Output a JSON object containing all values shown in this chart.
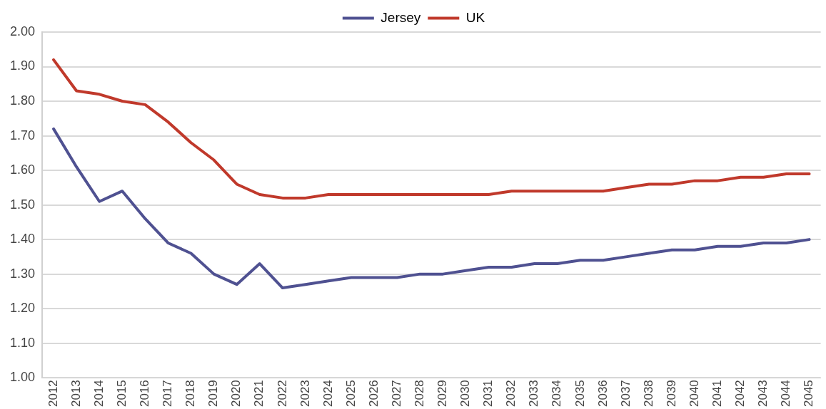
{
  "chart_data": {
    "type": "line",
    "categories": [
      "2012",
      "2013",
      "2014",
      "2015",
      "2016",
      "2017",
      "2018",
      "2019",
      "2020",
      "2021",
      "2022",
      "2023",
      "2024",
      "2025",
      "2026",
      "2027",
      "2028",
      "2029",
      "2030",
      "2031",
      "2032",
      "2033",
      "2034",
      "2035",
      "2036",
      "2037",
      "2038",
      "2039",
      "2040",
      "2041",
      "2042",
      "2043",
      "2044",
      "2045"
    ],
    "series": [
      {
        "name": "Jersey",
        "color": "#4f5191",
        "values": [
          1.72,
          1.61,
          1.51,
          1.54,
          1.46,
          1.39,
          1.36,
          1.3,
          1.27,
          1.33,
          1.26,
          1.27,
          1.28,
          1.29,
          1.29,
          1.29,
          1.3,
          1.3,
          1.31,
          1.32,
          1.32,
          1.33,
          1.33,
          1.34,
          1.34,
          1.35,
          1.36,
          1.37,
          1.37,
          1.38,
          1.38,
          1.39,
          1.39,
          1.4
        ]
      },
      {
        "name": "UK",
        "color": "#c0392b",
        "values": [
          1.92,
          1.83,
          1.82,
          1.8,
          1.79,
          1.74,
          1.68,
          1.63,
          1.56,
          1.53,
          1.52,
          1.52,
          1.53,
          1.53,
          1.53,
          1.53,
          1.53,
          1.53,
          1.53,
          1.53,
          1.54,
          1.54,
          1.54,
          1.54,
          1.54,
          1.55,
          1.56,
          1.56,
          1.57,
          1.57,
          1.58,
          1.58,
          1.59,
          1.59
        ]
      }
    ],
    "ylim": [
      1.0,
      2.0
    ],
    "yticks": [
      {
        "value": 1.0,
        "label": "1.00"
      },
      {
        "value": 1.1,
        "label": "1.10"
      },
      {
        "value": 1.2,
        "label": "1.20"
      },
      {
        "value": 1.3,
        "label": "1.30"
      },
      {
        "value": 1.4,
        "label": "1.40"
      },
      {
        "value": 1.5,
        "label": "1.50"
      },
      {
        "value": 1.6,
        "label": "1.60"
      },
      {
        "value": 1.7,
        "label": "1.70"
      },
      {
        "value": 1.8,
        "label": "1.80"
      },
      {
        "value": 1.9,
        "label": "1.90"
      },
      {
        "value": 2.0,
        "label": "2.00"
      }
    ],
    "grid": "y",
    "legend": "top",
    "marker": "none",
    "line_style": "solid"
  }
}
